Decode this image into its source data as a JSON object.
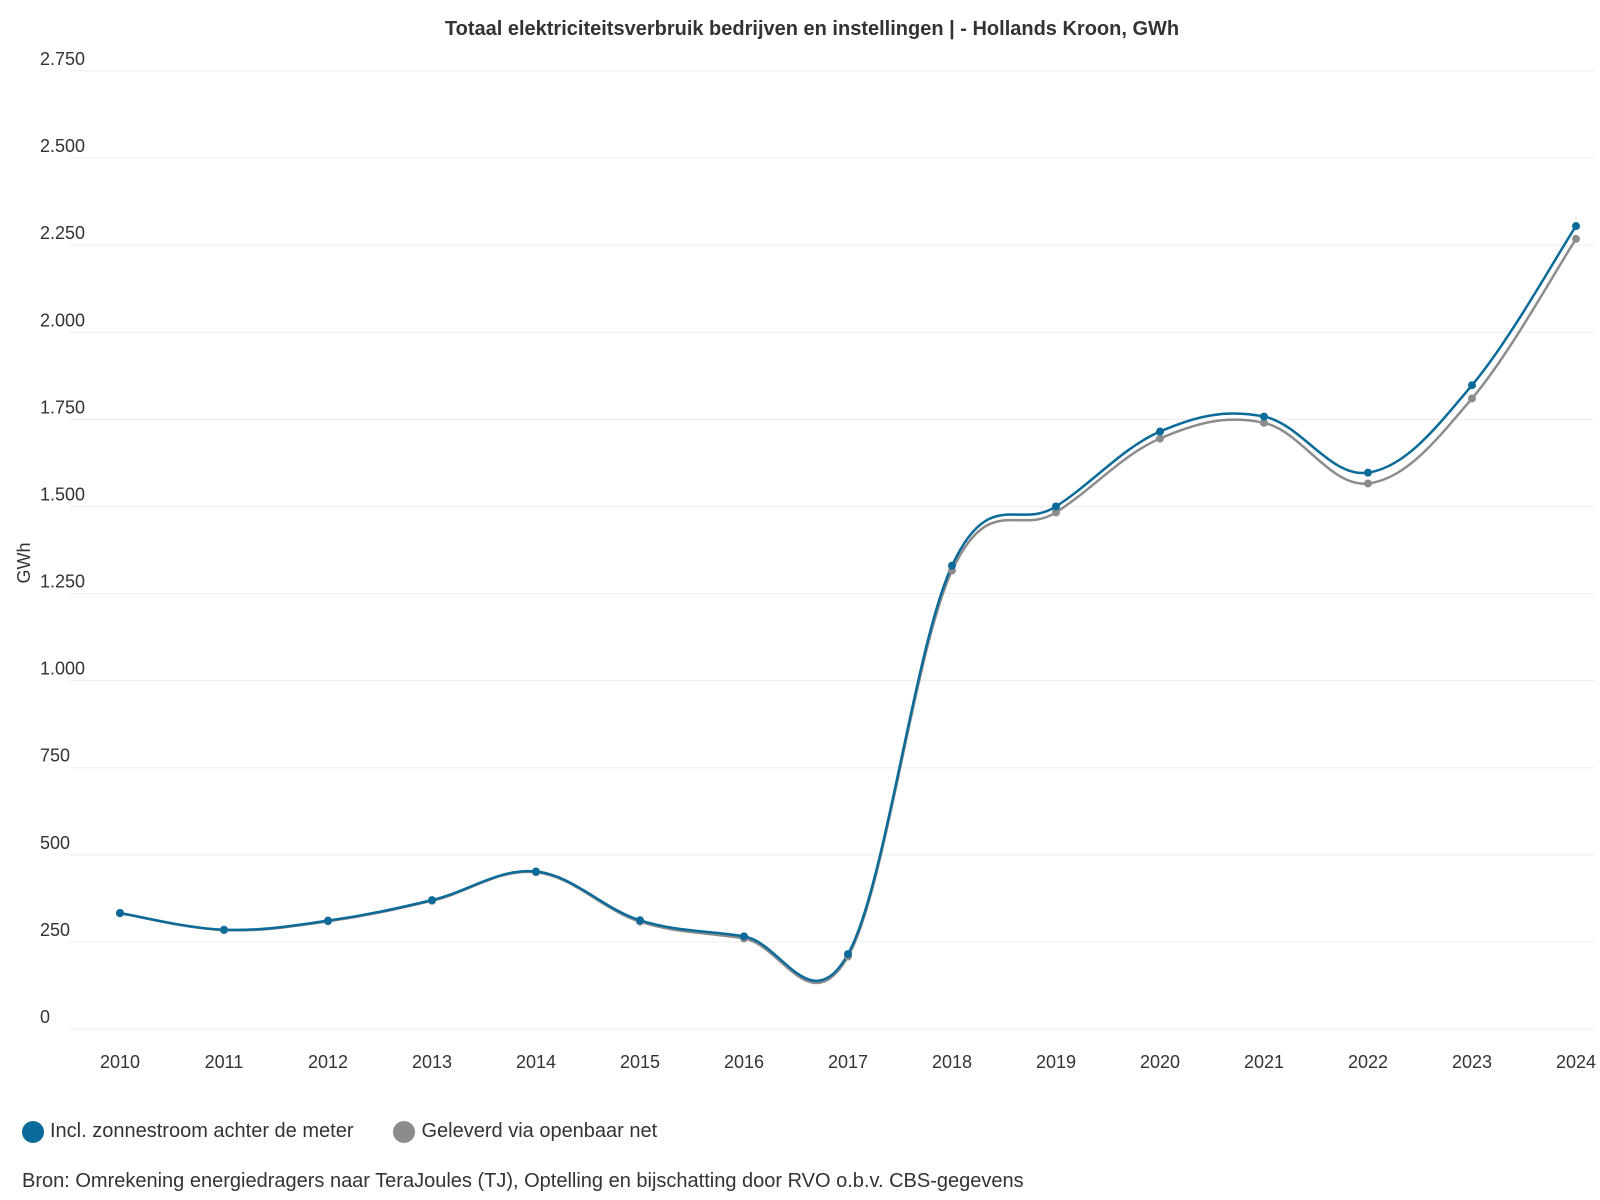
{
  "chart_data": {
    "type": "line",
    "title": "Totaal elektriciteitsverbruik bedrijven en instellingen | - Hollands Kroon, GWh",
    "ylabel": "GWh",
    "xlabel": "",
    "ylim": [
      0,
      2750
    ],
    "yticks": [
      0,
      250,
      500,
      750,
      1000,
      1250,
      1500,
      1750,
      2000,
      2250,
      2500,
      2750
    ],
    "ytick_labels": [
      "0",
      "250",
      "500",
      "750",
      "1.000",
      "1.250",
      "1.500",
      "1.750",
      "2.000",
      "2.250",
      "2.500",
      "2.750"
    ],
    "categories": [
      "2010",
      "2011",
      "2012",
      "2013",
      "2014",
      "2015",
      "2016",
      "2017",
      "2018",
      "2019",
      "2020",
      "2021",
      "2022",
      "2023",
      "2024"
    ],
    "series": [
      {
        "name": "Geleverd via openbaar net",
        "color": "#8c8c8c",
        "values": [
          332,
          284,
          309,
          368,
          450,
          308,
          260,
          208,
          1316,
          1483,
          1695,
          1740,
          1566,
          1810,
          2268
        ]
      },
      {
        "name": "Incl. zonnestroom achter de meter",
        "color": "#0a6b9a",
        "values": [
          333,
          285,
          311,
          370,
          452,
          312,
          266,
          215,
          1330,
          1500,
          1715,
          1758,
          1597,
          1848,
          2305
        ]
      }
    ],
    "legend": [
      "Incl. zonnestroom achter de meter",
      "Geleverd via openbaar net"
    ],
    "grid": true
  },
  "legend": {
    "items": [
      {
        "label": "Incl. zonnestroom achter de meter",
        "color": "#0a6b9a"
      },
      {
        "label": "Geleverd via openbaar net",
        "color": "#8c8c8c"
      }
    ]
  },
  "source": "Bron: Omrekening energiedragers naar TeraJoules (TJ), Optelling en bijschatting door RVO o.b.v. CBS-gegevens"
}
